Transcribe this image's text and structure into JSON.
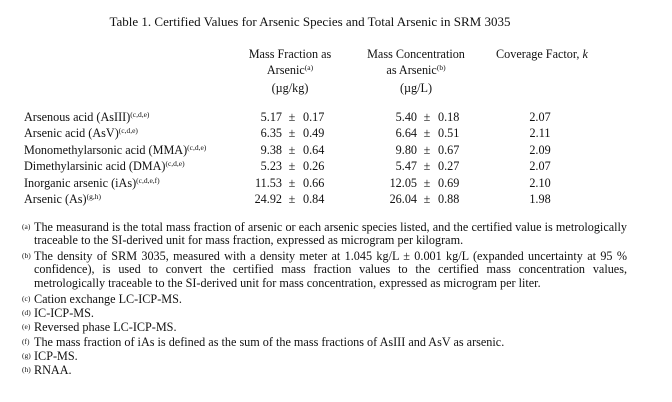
{
  "title": "Table 1.  Certified Values for Arsenic Species and Total Arsenic in SRM 3035",
  "headers": {
    "mass_fraction": {
      "line1": "Mass Fraction as",
      "line2": "Arsenic",
      "sup": "(a)",
      "unit": "(µg/kg)"
    },
    "mass_concentration": {
      "line1": "Mass Concentration",
      "line2": "as Arsenic",
      "sup": "(b)",
      "unit": "(µg/L)"
    },
    "coverage": {
      "label": "Coverage Factor, ",
      "k": "k"
    }
  },
  "rows": [
    {
      "name": "Arsenous acid (AsIII)",
      "sup": "(c,d,e)",
      "mf": "5.17",
      "mf_u": "0.17",
      "mc": "5.40",
      "mc_u": "0.18",
      "k": "2.07"
    },
    {
      "name": "Arsenic acid (AsV)",
      "sup": "(c,d,e)",
      "mf": "6.35",
      "mf_u": "0.49",
      "mc": "6.64",
      "mc_u": "0.51",
      "k": "2.11"
    },
    {
      "name": "Monomethylarsonic acid (MMA)",
      "sup": "(c,d,e)",
      "mf": "9.38",
      "mf_u": "0.64",
      "mc": "9.80",
      "mc_u": "0.67",
      "k": "2.09"
    },
    {
      "name": "Dimethylarsinic acid (DMA)",
      "sup": "(c,d,e)",
      "mf": "5.23",
      "mf_u": "0.26",
      "mc": "5.47",
      "mc_u": "0.27",
      "k": "2.07"
    },
    {
      "name": "Inorganic arsenic (iAs)",
      "sup": "(c,d,e,f)",
      "mf": "11.53",
      "mf_u": "0.66",
      "mc": "12.05",
      "mc_u": "0.69",
      "k": "2.10"
    },
    {
      "name": "Arsenic (As)",
      "sup": "(g,h)",
      "mf": "24.92",
      "mf_u": "0.84",
      "mc": "26.04",
      "mc_u": "0.88",
      "k": "1.98"
    }
  ],
  "pm": "±",
  "footnotes": [
    {
      "mark": "(a)",
      "text": "The measurand is the total mass fraction of arsenic or each arsenic species listed, and the certified value is metrologically traceable to the SI-derived unit for mass fraction, expressed as microgram per kilogram."
    },
    {
      "mark": "(b)",
      "text": "The density of SRM 3035, measured with a density meter at 1.045 kg/L ± 0.001 kg/L (expanded uncertainty at 95 % confidence), is used to convert the certified mass fraction values to the certified mass concentration values, metrologically traceable to the SI-derived unit for mass concentration, expressed as microgram per liter."
    },
    {
      "mark": "(c)",
      "text": "Cation exchange LC-ICP-MS."
    },
    {
      "mark": "(d)",
      "text": "IC-ICP-MS."
    },
    {
      "mark": "(e)",
      "text": "Reversed phase LC-ICP-MS."
    },
    {
      "mark": "(f)",
      "text": "The mass fraction of iAs is defined as the sum of the mass fractions of AsIII and AsV as arsenic."
    },
    {
      "mark": "(g)",
      "text": "ICP-MS."
    },
    {
      "mark": "(h)",
      "text": "RNAA."
    }
  ]
}
